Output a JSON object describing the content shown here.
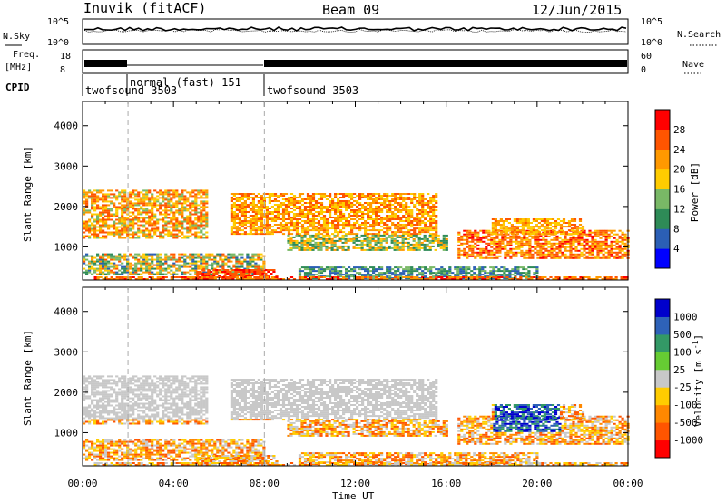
{
  "header": {
    "station": "Inuvik (fitACF)",
    "beam": "Beam 09",
    "date": "12/Jun/2015"
  },
  "noise_panel": {
    "left_label": "N.Sky",
    "right_label": "N.Search",
    "left_ticks": [
      "10^5",
      "10^0"
    ],
    "right_ticks": [
      "10^5",
      "10^0"
    ]
  },
  "freq_panel": {
    "left_label_1": "Freq.",
    "left_label_2": "[MHz]",
    "right_label": "Nave",
    "left_ticks": [
      "18",
      "8"
    ],
    "right_ticks": [
      "60",
      "0"
    ]
  },
  "cpid_panel": {
    "label": "CPID",
    "modes": [
      {
        "name": "twofsound 3503",
        "start_hour": 0,
        "end_hour": 2
      },
      {
        "name": "normal (fast) 151",
        "start_hour": 2,
        "end_hour": 8
      },
      {
        "name": "twofsound 3503",
        "start_hour": 8,
        "end_hour": 24
      }
    ]
  },
  "time_axis": {
    "title": "Time UT",
    "ticks": [
      "00:00",
      "04:00",
      "08:00",
      "12:00",
      "16:00",
      "20:00",
      "00:00"
    ],
    "tick_hours": [
      0,
      4,
      8,
      12,
      16,
      20,
      24
    ]
  },
  "chart_data": [
    {
      "type": "heatmap",
      "ylabel": "Slant Range [km]",
      "yticks": [
        1000,
        2000,
        3000,
        4000
      ],
      "ylim": [
        180,
        4600
      ],
      "xlim_hours": [
        0,
        24
      ],
      "colorbar": {
        "label": "Power [dB]",
        "ticks": [
          4,
          8,
          12,
          16,
          20,
          24,
          28
        ],
        "range": [
          0,
          32
        ],
        "colors": [
          "#0000ff",
          "#2b5fb5",
          "#2e8b57",
          "#79b866",
          "#ffcc00",
          "#ff9900",
          "#ff5500",
          "#ff0000"
        ]
      }
    },
    {
      "type": "heatmap",
      "ylabel": "Velocity [m s^-1]",
      "yaxis_label": "Slant Range [km]",
      "yticks": [
        1000,
        2000,
        3000,
        4000
      ],
      "ylim": [
        180,
        4600
      ],
      "xlim_hours": [
        0,
        24
      ],
      "colorbar": {
        "label": "Velocity [m s",
        "label_sup": "-1",
        "label_end": "]",
        "ticks": [
          "1000",
          "500",
          "100",
          "25",
          "-25",
          "-100",
          "-500",
          "-1000"
        ],
        "colors": [
          "#0000cc",
          "#2e62b8",
          "#339966",
          "#66cc33",
          "#c8c8c8",
          "#ffcc00",
          "#ff8800",
          "#ff5500",
          "#ff0000"
        ]
      }
    }
  ]
}
